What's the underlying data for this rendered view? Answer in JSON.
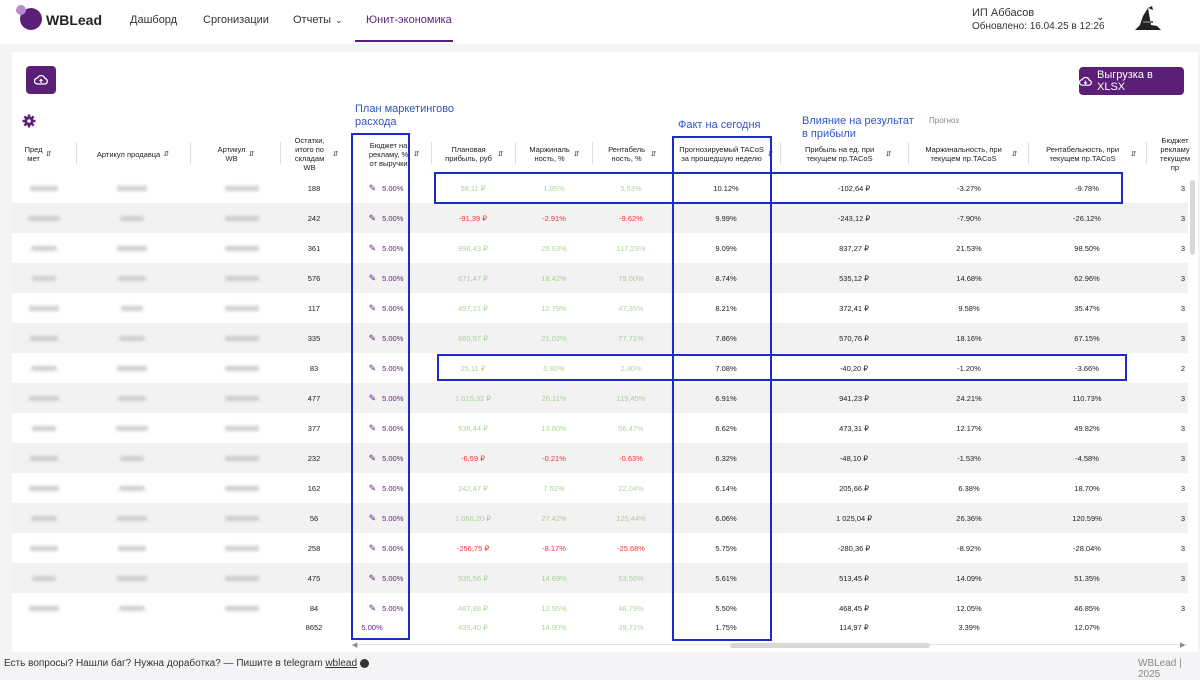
{
  "app": {
    "brand": "WBLead"
  },
  "nav": [
    {
      "label": "Дашборд"
    },
    {
      "label": "Сргонизации"
    },
    {
      "label": "Отчеты"
    },
    {
      "label": "Юнит-экономика"
    }
  ],
  "user": {
    "name": "ИП Аббасов",
    "updated": "Обновлено: 16.04.25 в 12:26"
  },
  "toolbar": {
    "export_label": "Выгрузка в XLSX"
  },
  "annotations": {
    "plan": "План маркетингово",
    "plan2": "расхода",
    "fact": "Факт на сегодня",
    "impact": "Влияние на результат",
    "impact2": "в прибыли",
    "prognoz": "Прогноз"
  },
  "columns": {
    "c0": "Пред мет",
    "c1": "Артикул продавца",
    "c2": "Артикул WB",
    "c3": "Остатки, итого по складам WB",
    "c4": "Бюджет на рекламу, % от выручки",
    "c5": "Плановая прибыль, руб",
    "c6": "Маржиналь ность, %",
    "c7": "Рентабель ность, %",
    "c8": "Прогнозируемый TACoS за прошедшую неделю",
    "c9": "Прибыль на ед. при текущем пр.TACoS",
    "c10": "Маржинальность, при текущем пр.TACoS",
    "c11": "Рентабельность, при текущем пр.TACoS",
    "c12": "Бюджет рекламу текущем пр"
  },
  "rows": [
    {
      "stock": "188",
      "budget": "5.00%",
      "plan": "58,11 ₽",
      "planc": "pos dim",
      "marg": "1,85%",
      "margc": "pos dim",
      "rent": "5,53%",
      "rentc": "pos dim",
      "tacos": "10.12%",
      "profit": "-102,64 ₽",
      "m2": "-3.27%",
      "r2": "-9.78%",
      "last": "3"
    },
    {
      "stock": "242",
      "budget": "5.00%",
      "plan": "-91,39 ₽",
      "planc": "neg",
      "marg": "-2.91%",
      "margc": "neg",
      "rent": "-9.62%",
      "rentc": "neg",
      "tacos": "9.99%",
      "profit": "-243,12 ₽",
      "m2": "-7.90%",
      "r2": "-26.12%",
      "last": "3"
    },
    {
      "stock": "361",
      "budget": "5.00%",
      "plan": "996,43 ₽",
      "planc": "pos dim",
      "marg": "25.63%",
      "margc": "pos dim",
      "rent": "117,23%",
      "rentc": "pos dim",
      "tacos": "9.09%",
      "profit": "837,27 ₽",
      "m2": "21.53%",
      "r2": "98.50%",
      "last": "3"
    },
    {
      "stock": "576",
      "budget": "5.00%",
      "plan": "671,47 ₽",
      "planc": "pos dim",
      "marg": "18.42%",
      "margc": "pos dim",
      "rent": "79,00%",
      "rentc": "pos dim",
      "tacos": "8.74%",
      "profit": "535,12 ₽",
      "m2": "14.68%",
      "r2": "62.96%",
      "last": "3"
    },
    {
      "stock": "117",
      "budget": "5.00%",
      "plan": "497,21 ₽",
      "planc": "pos dim",
      "marg": "12.79%",
      "margc": "pos dim",
      "rent": "47,35%",
      "rentc": "pos dim",
      "tacos": "8.21%",
      "profit": "372,41 ₽",
      "m2": "9.58%",
      "r2": "35.47%",
      "last": "3"
    },
    {
      "stock": "335",
      "budget": "5.00%",
      "plan": "660,57 ₽",
      "planc": "pos dim",
      "marg": "21.02%",
      "margc": "pos dim",
      "rent": "77,71%",
      "rentc": "pos dim",
      "tacos": "7.86%",
      "profit": "570,76 ₽",
      "m2": "18.16%",
      "r2": "67.15%",
      "last": "3"
    },
    {
      "stock": "83",
      "budget": "5.00%",
      "plan": "25,11 ₽",
      "planc": "pos dim",
      "marg": "0.80%",
      "margc": "pos dim",
      "rent": "2,30%",
      "rentc": "pos dim",
      "tacos": "7.08%",
      "profit": "-40,20 ₽",
      "m2": "-1.20%",
      "r2": "-3.66%",
      "last": "2"
    },
    {
      "stock": "477",
      "budget": "5.00%",
      "plan": "1 015,32 ₽",
      "planc": "pos dim",
      "marg": "26.11%",
      "margc": "pos dim",
      "rent": "119,45%",
      "rentc": "pos dim",
      "tacos": "6.91%",
      "profit": "941,23 ₽",
      "m2": "24.21%",
      "r2": "110.73%",
      "last": "3"
    },
    {
      "stock": "377",
      "budget": "5.00%",
      "plan": "536,44 ₽",
      "planc": "pos dim",
      "marg": "13.80%",
      "margc": "pos dim",
      "rent": "56,47%",
      "rentc": "pos dim",
      "tacos": "6.62%",
      "profit": "473,31 ₽",
      "m2": "12.17%",
      "r2": "49.82%",
      "last": "3"
    },
    {
      "stock": "232",
      "budget": "5.00%",
      "plan": "-6,59 ₽",
      "planc": "neg",
      "marg": "-0.21%",
      "margc": "neg",
      "rent": "-0.63%",
      "rentc": "neg",
      "tacos": "6.32%",
      "profit": "-48,10 ₽",
      "m2": "-1.53%",
      "r2": "-4.58%",
      "last": "3"
    },
    {
      "stock": "162",
      "budget": "5.00%",
      "plan": "242,47 ₽",
      "planc": "pos dim",
      "marg": "7.52%",
      "margc": "pos dim",
      "rent": "22,04%",
      "rentc": "pos dim",
      "tacos": "6.14%",
      "profit": "205,66 ₽",
      "m2": "6.38%",
      "r2": "18.70%",
      "last": "3"
    },
    {
      "stock": "56",
      "budget": "5.00%",
      "plan": "1 066,20 ₽",
      "planc": "pos dim",
      "marg": "27.42%",
      "margc": "pos dim",
      "rent": "125,44%",
      "rentc": "pos dim",
      "tacos": "6.06%",
      "profit": "1 025,04 ₽",
      "m2": "26.36%",
      "r2": "120.59%",
      "last": "3"
    },
    {
      "stock": "258",
      "budget": "5.00%",
      "plan": "-256,75 ₽",
      "planc": "neg",
      "marg": "-8.17%",
      "margc": "neg",
      "rent": "-25.68%",
      "rentc": "neg",
      "tacos": "5.75%",
      "profit": "-280,36 ₽",
      "m2": "-8.92%",
      "r2": "-28.04%",
      "last": "3"
    },
    {
      "stock": "475",
      "budget": "5.00%",
      "plan": "535,56 ₽",
      "planc": "pos dim",
      "marg": "14.69%",
      "margc": "pos dim",
      "rent": "53,56%",
      "rentc": "pos dim",
      "tacos": "5.61%",
      "profit": "513,45 ₽",
      "m2": "14.09%",
      "r2": "51.35%",
      "last": "3"
    },
    {
      "stock": "84",
      "budget": "5.00%",
      "plan": "487,88 ₽",
      "planc": "pos dim",
      "marg": "12.55%",
      "margc": "pos dim",
      "rent": "48,79%",
      "rentc": "pos dim",
      "tacos": "5.50%",
      "profit": "468,45 ₽",
      "m2": "12.05%",
      "r2": "46.85%",
      "last": "3"
    }
  ],
  "totals": {
    "stock": "8652",
    "budget": "5.00%",
    "plan": "435,40 ₽",
    "marg": "14.90%",
    "rent": "39,71%",
    "tacos": "1.75%",
    "profit": "114,97 ₽",
    "m2": "3.39%",
    "r2": "12.07%"
  },
  "footer": {
    "text": "Есть вопросы? Нашли баг? Нужна доработка? — Пишите в telegram",
    "link": "wblead",
    "right": "WBLead | 2025"
  },
  "colors": {
    "brand": "#5b1f78",
    "annotation": "#1b2bc9",
    "positive": "#6bb34a",
    "negative": "#e33333"
  }
}
